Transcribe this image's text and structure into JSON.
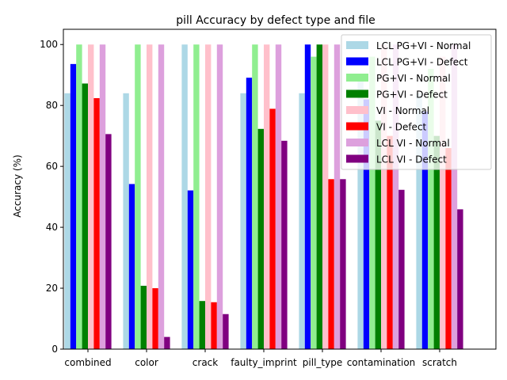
{
  "chart_data": {
    "type": "bar",
    "title": "pill Accuracy by defect type and file",
    "xlabel": "",
    "ylabel": "Accuracy (%)",
    "ylim": [
      0,
      105
    ],
    "yticks": [
      0,
      20,
      40,
      60,
      80,
      100
    ],
    "grid": false,
    "legend_placement": "top-right",
    "categories": [
      "combined",
      "color",
      "crack",
      "faulty_imprint",
      "pill_type",
      "contamination",
      "scratch"
    ],
    "series": [
      {
        "name": "LCL PG+VI - Normal",
        "color": "#add8e6",
        "values": [
          84,
          84,
          100,
          84,
          84,
          88,
          84
        ]
      },
      {
        "name": "LCL PG+VI - Defect",
        "color": "#0000ff",
        "values": [
          93.6,
          54.2,
          52.1,
          89.1,
          100,
          82,
          78
        ]
      },
      {
        "name": "PG+VI - Normal",
        "color": "#90ee90",
        "values": [
          100,
          100,
          100,
          100,
          96,
          96,
          92
        ]
      },
      {
        "name": "PG+VI - Defect",
        "color": "#008000",
        "values": [
          87.2,
          20.8,
          15.8,
          72.3,
          100,
          75,
          70
        ]
      },
      {
        "name": "VI - Normal",
        "color": "#ffc0cb",
        "values": [
          100,
          100,
          100,
          100,
          100,
          100,
          96
        ]
      },
      {
        "name": "VI - Defect",
        "color": "#ff0000",
        "values": [
          82.4,
          20,
          15.4,
          78.9,
          55.8,
          70,
          66
        ]
      },
      {
        "name": "LCL VI - Normal",
        "color": "#dda0dd",
        "values": [
          100,
          100,
          100,
          100,
          100,
          100,
          100
        ]
      },
      {
        "name": "LCL VI - Defect",
        "color": "#800080",
        "values": [
          70.6,
          4,
          11.5,
          68.4,
          55.8,
          52.3,
          45.9
        ]
      }
    ]
  }
}
